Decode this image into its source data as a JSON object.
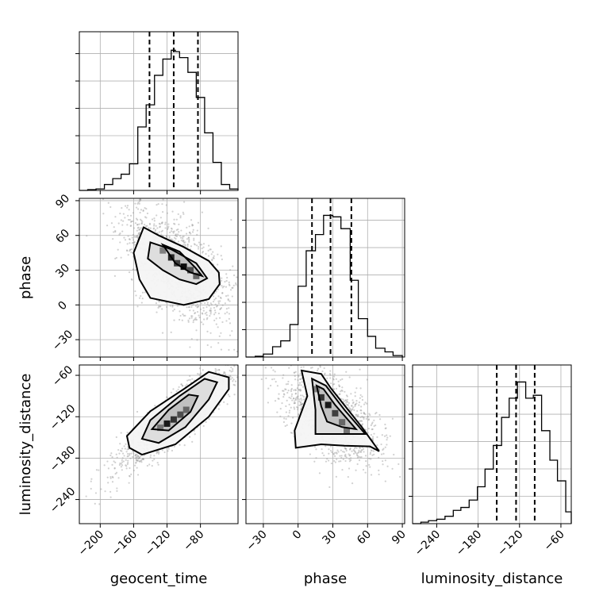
{
  "chart_data": {
    "type": "corner",
    "parameters": [
      "geocent_time",
      "phase",
      "luminosity_distance"
    ],
    "axis_labels": {
      "geocent_time": "geocent_time",
      "phase": "phase",
      "luminosity_distance": "luminosity_distance"
    },
    "ranges": {
      "geocent_time": [
        -225,
        -35
      ],
      "phase": [
        -45,
        92
      ],
      "luminosity_distance": [
        -275,
        -45
      ]
    },
    "ticks": {
      "geocent_time": [
        -200,
        -160,
        -120,
        -80
      ],
      "phase": [
        -30,
        0,
        30,
        60,
        90
      ],
      "luminosity_distance": [
        -240,
        -180,
        -120,
        -60
      ]
    },
    "tick_labels": {
      "geocent_time": [
        "−200",
        "−160",
        "−120",
        "−80"
      ],
      "phase": [
        "−30",
        "0",
        "30",
        "60",
        "90"
      ],
      "luminosity_distance": [
        "−240",
        "−180",
        "−120",
        "−60"
      ]
    },
    "quantiles": {
      "geocent_time": [
        -141,
        -112,
        -83
      ],
      "phase": [
        12,
        28,
        46
      ],
      "luminosity_distance": [
        -153,
        -125,
        -98
      ]
    },
    "grid": true,
    "histograms": {
      "geocent_time": {
        "edges": [
          -225,
          -215,
          -205,
          -195,
          -185,
          -175,
          -165,
          -155,
          -145,
          -135,
          -125,
          -115,
          -110,
          -105,
          -95,
          -85,
          -75,
          -65,
          -55,
          -45,
          -35
        ],
        "counts": [
          0.0,
          0.005,
          0.01,
          0.04,
          0.08,
          0.11,
          0.18,
          0.43,
          0.58,
          0.78,
          0.89,
          0.95,
          0.94,
          0.9,
          0.8,
          0.63,
          0.39,
          0.19,
          0.04,
          0.01
        ]
      },
      "phase": {
        "edges": [
          -45,
          -37,
          -30,
          -22,
          -15,
          -7,
          0,
          7,
          15,
          22,
          30,
          37,
          45,
          52,
          60,
          67,
          75,
          82,
          90
        ],
        "counts": [
          0.0,
          0.005,
          0.02,
          0.07,
          0.11,
          0.22,
          0.48,
          0.72,
          0.83,
          0.96,
          0.95,
          0.87,
          0.52,
          0.26,
          0.14,
          0.06,
          0.035,
          0.01
        ]
      },
      "luminosity_distance": {
        "edges": [
          -275,
          -263,
          -252,
          -240,
          -228,
          -216,
          -205,
          -193,
          -181,
          -170,
          -158,
          -146,
          -135,
          -123,
          -111,
          -100,
          -88,
          -76,
          -65,
          -53,
          -45
        ],
        "counts": [
          0.0,
          0.01,
          0.02,
          0.03,
          0.05,
          0.09,
          0.11,
          0.16,
          0.25,
          0.37,
          0.53,
          0.72,
          0.85,
          0.96,
          0.85,
          0.87,
          0.63,
          0.43,
          0.29,
          0.08
        ]
      }
    },
    "density_2d": [
      {
        "x": "geocent_time",
        "y": "phase",
        "center": [
          -110,
          35
        ],
        "spread": [
          28,
          22
        ],
        "correlation": -0.6,
        "peak_cells": [
          [
            -115,
            41,
            0.85
          ],
          [
            -108,
            36,
            0.75
          ],
          [
            -100,
            33,
            0.95
          ],
          [
            -92,
            30,
            0.7
          ],
          [
            -125,
            47,
            0.5
          ],
          [
            -85,
            25,
            0.6
          ]
        ],
        "contours": [
          [
            [
              -148,
              67
            ],
            [
              -130,
              60
            ],
            [
              -100,
              50
            ],
            [
              -70,
              38
            ],
            [
              -58,
              28
            ],
            [
              -57,
              18
            ],
            [
              -70,
              5
            ],
            [
              -100,
              0
            ],
            [
              -140,
              6
            ],
            [
              -153,
              22
            ],
            [
              -160,
              45
            ]
          ],
          [
            [
              -140,
              54
            ],
            [
              -115,
              48
            ],
            [
              -85,
              36
            ],
            [
              -72,
              23
            ],
            [
              -85,
              18
            ],
            [
              -105,
              22
            ],
            [
              -125,
              30
            ],
            [
              -143,
              40
            ]
          ],
          [
            [
              -125,
              52
            ],
            [
              -105,
              46
            ],
            [
              -86,
              32
            ],
            [
              -78,
              25
            ],
            [
              -92,
              28
            ],
            [
              -110,
              36
            ]
          ]
        ]
      },
      {
        "x": "geocent_time",
        "y": "luminosity_distance",
        "center": [
          -112,
          -124
        ],
        "spread": [
          30,
          32
        ],
        "correlation": 0.88,
        "peak_cells": [
          [
            -120,
            -130,
            0.9
          ],
          [
            -112,
            -124,
            0.8
          ],
          [
            -104,
            -117,
            0.7
          ],
          [
            -97,
            -110,
            0.6
          ],
          [
            -128,
            -136,
            0.55
          ]
        ],
        "contours": [
          [
            [
              -165,
              -165
            ],
            [
              -150,
              -175
            ],
            [
              -110,
              -160
            ],
            [
              -70,
              -120
            ],
            [
              -46,
              -80
            ],
            [
              -46,
              -63
            ],
            [
              -70,
              -55
            ],
            [
              -100,
              -80
            ],
            [
              -140,
              -112
            ],
            [
              -168,
              -148
            ]
          ],
          [
            [
              -150,
              -152
            ],
            [
              -130,
              -158
            ],
            [
              -98,
              -135
            ],
            [
              -70,
              -95
            ],
            [
              -60,
              -70
            ],
            [
              -75,
              -65
            ],
            [
              -105,
              -90
            ],
            [
              -140,
              -125
            ]
          ],
          [
            [
              -138,
              -138
            ],
            [
              -118,
              -140
            ],
            [
              -92,
              -113
            ],
            [
              -83,
              -90
            ],
            [
              -94,
              -88
            ],
            [
              -118,
              -110
            ]
          ]
        ]
      },
      {
        "x": "phase",
        "y": "luminosity_distance",
        "center": [
          28,
          -118
        ],
        "spread": [
          18,
          30
        ],
        "correlation": -0.55,
        "peak_cells": [
          [
            20,
            -92,
            0.8
          ],
          [
            26,
            -103,
            0.9
          ],
          [
            32,
            -115,
            0.75
          ],
          [
            38,
            -128,
            0.6
          ],
          [
            42,
            -141,
            0.55
          ],
          [
            16,
            -80,
            0.5
          ]
        ],
        "contours": [
          [
            [
              3,
              -53
            ],
            [
              8,
              -90
            ],
            [
              -3,
              -140
            ],
            [
              -2,
              -165
            ],
            [
              20,
              -160
            ],
            [
              40,
              -162
            ],
            [
              62,
              -163
            ],
            [
              70,
              -170
            ],
            [
              55,
              -135
            ],
            [
              28,
              -78
            ],
            [
              20,
              -58
            ]
          ],
          [
            [
              12,
              -65
            ],
            [
              15,
              -110
            ],
            [
              15,
              -145
            ],
            [
              38,
              -145
            ],
            [
              58,
              -145
            ],
            [
              40,
              -110
            ],
            [
              24,
              -75
            ]
          ],
          [
            [
              16,
              -75
            ],
            [
              20,
              -105
            ],
            [
              25,
              -127
            ],
            [
              38,
              -135
            ],
            [
              50,
              -138
            ],
            [
              32,
              -103
            ],
            [
              22,
              -80
            ]
          ]
        ]
      }
    ]
  }
}
